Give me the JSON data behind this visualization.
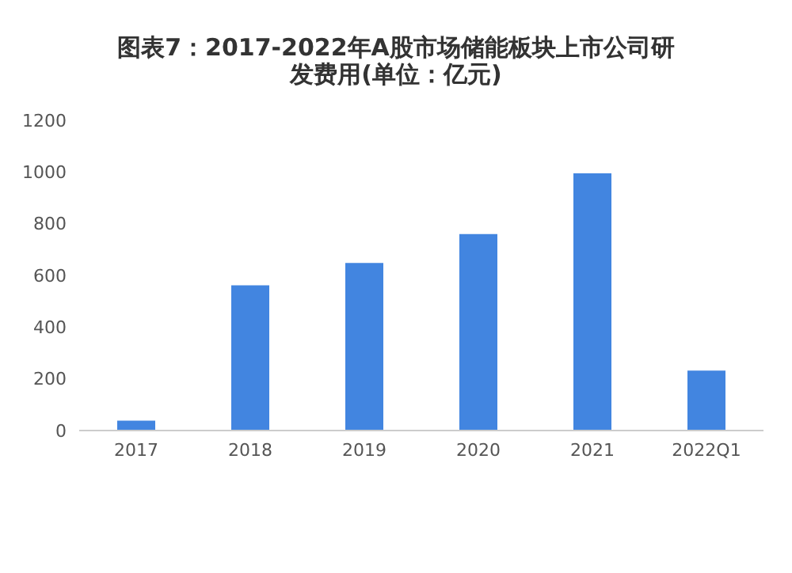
{
  "chart_data": {
    "type": "bar",
    "title": "图表7：2017-2022年A股市场储能板块上市公司研发费用(单位：亿元)",
    "categories": [
      "2017",
      "2018",
      "2019",
      "2020",
      "2021",
      "2022Q1"
    ],
    "values": [
      38,
      562,
      648,
      760,
      995,
      232
    ],
    "color": "#4285e0",
    "ylim": [
      0,
      1200
    ],
    "yticks": [
      0,
      200,
      400,
      600,
      800,
      1000,
      1200
    ],
    "grid": false
  }
}
